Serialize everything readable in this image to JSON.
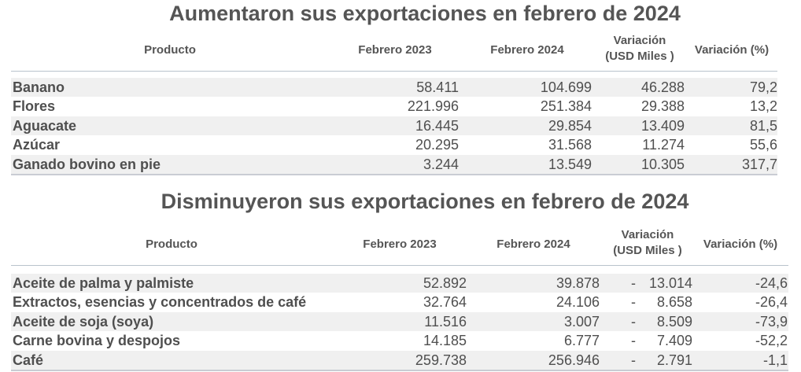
{
  "tables": [
    {
      "title": "Aumentaron sus exportaciones en febrero de 2024",
      "headers": {
        "product": "Producto",
        "feb2023": "Febrero 2023",
        "feb2024": "Febrero 2024",
        "variation_line1": "Variación",
        "variation_line2": "(USD Miles )",
        "variation_pct": "Variación (%)"
      },
      "rows": [
        {
          "product": "Banano",
          "feb2023": "58.411",
          "feb2024": "104.699",
          "sign": "",
          "variation": "46.288",
          "pct": "79,2"
        },
        {
          "product": "Flores",
          "feb2023": "221.996",
          "feb2024": "251.384",
          "sign": "",
          "variation": "29.388",
          "pct": "13,2"
        },
        {
          "product": "Aguacate",
          "feb2023": "16.445",
          "feb2024": "29.854",
          "sign": "",
          "variation": "13.409",
          "pct": "81,5"
        },
        {
          "product": "Azúcar",
          "feb2023": "20.295",
          "feb2024": "31.568",
          "sign": "",
          "variation": "11.274",
          "pct": "55,6"
        },
        {
          "product": "Ganado bovino en pie",
          "feb2023": "3.244",
          "feb2024": "13.549",
          "sign": "",
          "variation": "10.305",
          "pct": "317,7"
        }
      ]
    },
    {
      "title": "Disminuyeron sus exportaciones en febrero de 2024",
      "headers": {
        "product": "Producto",
        "feb2023": "Febrero 2023",
        "feb2024": "Febrero 2024",
        "variation_line1": "Variación",
        "variation_line2": "(USD Miles )",
        "variation_pct": "Variación (%)"
      },
      "rows": [
        {
          "product": "Aceite de palma y palmiste",
          "feb2023": "52.892",
          "feb2024": "39.878",
          "sign": "-",
          "variation": "13.014",
          "pct": "-24,6"
        },
        {
          "product": "Extractos, esencias y concentrados de café",
          "feb2023": "32.764",
          "feb2024": "24.106",
          "sign": "-",
          "variation": "8.658",
          "pct": "-26,4"
        },
        {
          "product": "Aceite de soja (soya)",
          "feb2023": "11.516",
          "feb2024": "3.007",
          "sign": "-",
          "variation": "8.509",
          "pct": "-73,9"
        },
        {
          "product": "Carne bovina y despojos",
          "feb2023": "14.185",
          "feb2024": "6.777",
          "sign": "-",
          "variation": "7.409",
          "pct": "-52,2"
        },
        {
          "product": "Café",
          "feb2023": "259.738",
          "feb2024": "256.946",
          "sign": "-",
          "variation": "2.791",
          "pct": "-1,1"
        }
      ]
    }
  ]
}
